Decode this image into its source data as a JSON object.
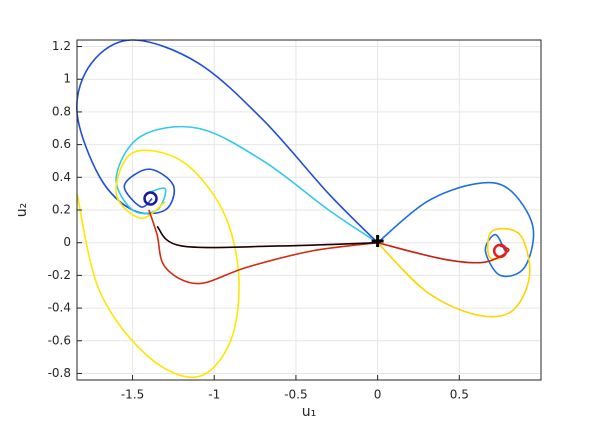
{
  "chart_data": {
    "type": "line",
    "xlabel": "u₁",
    "ylabel": "u₂",
    "xlim": [
      -1.84,
      1.0
    ],
    "ylim": [
      -0.84,
      1.24
    ],
    "xticks": [
      -1.5,
      -1,
      -0.5,
      0,
      0.5
    ],
    "yticks": [
      -0.8,
      -0.6,
      -0.4,
      -0.2,
      0,
      0.2,
      0.4,
      0.6,
      0.8,
      1,
      1.2
    ],
    "grid": true,
    "series": [
      {
        "color": "#1f4fd8",
        "x": [
          0,
          -0.3,
          -0.7,
          -1.1,
          -1.5,
          -1.75,
          -1.84,
          -1.7,
          -1.5,
          -1.3,
          -1.25,
          -1.4,
          -1.55,
          -1.45,
          -1.38
        ],
        "y": [
          0,
          0.3,
          0.75,
          1.1,
          1.24,
          1.1,
          0.8,
          0.4,
          0.2,
          0.2,
          0.35,
          0.45,
          0.35,
          0.22,
          0.27
        ]
      },
      {
        "color": "#33c8f0",
        "x": [
          0,
          -0.3,
          -0.7,
          -1.1,
          -1.45,
          -1.6,
          -1.5,
          -1.35,
          -1.3,
          -1.42
        ],
        "y": [
          0,
          0.2,
          0.5,
          0.7,
          0.65,
          0.4,
          0.2,
          0.2,
          0.33,
          0.3
        ]
      },
      {
        "color": "#ffe600",
        "x": [
          -1.84,
          -1.7,
          -1.4,
          -1.1,
          -0.9,
          -0.85,
          -0.95,
          -1.2,
          -1.5,
          -1.6,
          -1.45,
          -1.3
        ],
        "y": [
          0.3,
          -0.3,
          -0.7,
          -0.82,
          -0.6,
          -0.2,
          0.2,
          0.5,
          0.55,
          0.3,
          0.15,
          0.25
        ]
      },
      {
        "color": "#d42a10",
        "x": [
          0,
          -0.4,
          -0.8,
          -1.1,
          -1.3,
          -1.35,
          -1.4
        ],
        "y": [
          0,
          -0.05,
          -0.15,
          -0.25,
          -0.15,
          0.05,
          0.2
        ]
      },
      {
        "color": "#200000",
        "x": [
          0,
          -0.6,
          -1.2,
          -1.35
        ],
        "y": [
          0,
          -0.02,
          -0.02,
          0.1
        ]
      },
      {
        "color": "#1f6fe0",
        "x": [
          0,
          0.3,
          0.6,
          0.8,
          0.95,
          0.9,
          0.75,
          0.66,
          0.72,
          0.78
        ],
        "y": [
          0,
          0.25,
          0.36,
          0.33,
          0.1,
          -0.15,
          -0.2,
          -0.05,
          0.05,
          -0.05
        ]
      },
      {
        "color": "#ffd400",
        "x": [
          0,
          0.3,
          0.6,
          0.82,
          0.93,
          0.87,
          0.7,
          0.68,
          0.75
        ],
        "y": [
          0,
          -0.3,
          -0.44,
          -0.42,
          -0.2,
          0.05,
          0.07,
          -0.08,
          -0.1
        ]
      },
      {
        "color": "#c81e10",
        "x": [
          0,
          0.4,
          0.65,
          0.8,
          0.75
        ],
        "y": [
          0,
          -0.1,
          -0.12,
          -0.05,
          -0.02
        ]
      }
    ],
    "markers": {
      "x": [
        -1.39,
        0.75,
        0
      ],
      "y": [
        0.27,
        -0.05,
        0.01
      ],
      "colors": [
        "#1a1aa0",
        "#e02020",
        "#000000"
      ],
      "symbols": [
        "o",
        "o",
        "+"
      ]
    }
  }
}
